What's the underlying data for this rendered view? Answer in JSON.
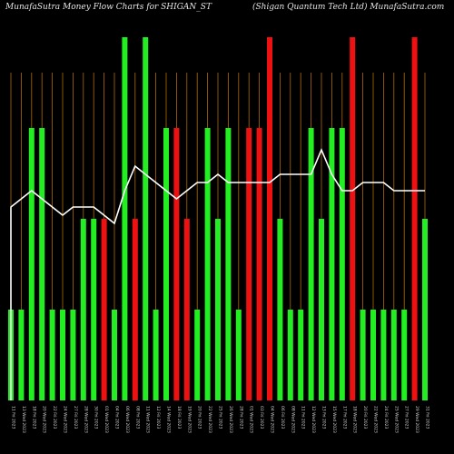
{
  "chart_data": {
    "type": "bar",
    "title_left": "MunafaSutra  Money Flow  Charts for SHIGAN_ST",
    "title_right": "(Shigan Quantum Tech Ltd) MunafaSutra.com",
    "categories": [
      "11 Fri 2023",
      "13 Wed 2023",
      "18 Fri 2023",
      "20 Wed 2023",
      "22 Fri 2023",
      "24 Wed 2023",
      "27 Fri 2023",
      "28 Wed 2023",
      "30 Fri 2023",
      "01 Wed 2023",
      "04 Fri 2023",
      "06 Wed 2023",
      "08 Fri 2023",
      "11 Wed 2023",
      "12 Fri 2023",
      "14 Wed 2023",
      "18 Fri 2023",
      "19 Wed 2023",
      "20 Fri 2023",
      "22 Wed 2023",
      "25 Fri 2023",
      "26 Wed 2023",
      "28 Fri 2023",
      "01 Wed 2023",
      "03 Fri 2023",
      "04 Wed 2023",
      "06 Fri 2023",
      "08 Wed 2023",
      "11 Fri 2023",
      "12 Wed 2023",
      "13 Fri 2023",
      "15 Wed 2023",
      "17 Fri 2023",
      "18 Wed 2023",
      "20 Fri 2023",
      "22 Wed 2023",
      "24 Fri 2023",
      "25 Wed 2023",
      "27 Fri 2023",
      "29 Wed 2023",
      "31 Fri 2023"
    ],
    "bar_values": [
      1,
      1,
      3,
      3,
      1,
      1,
      1,
      2,
      2,
      2,
      1,
      4,
      2,
      4,
      1,
      3,
      3,
      2,
      1,
      3,
      2,
      3,
      1,
      3,
      3,
      4,
      2,
      1,
      1,
      3,
      2,
      3,
      3,
      4,
      1,
      1,
      1,
      1,
      1,
      4,
      2
    ],
    "bar_colors": [
      "green",
      "green",
      "green",
      "green",
      "green",
      "green",
      "green",
      "green",
      "green",
      "red",
      "green",
      "green",
      "red",
      "green",
      "green",
      "green",
      "red",
      "red",
      "green",
      "green",
      "green",
      "green",
      "green",
      "red",
      "red",
      "red",
      "green",
      "green",
      "green",
      "green",
      "green",
      "green",
      "green",
      "red",
      "green",
      "green",
      "green",
      "green",
      "green",
      "red",
      "green"
    ],
    "line_values": [
      2.3,
      2.4,
      2.5,
      2.4,
      2.3,
      2.2,
      2.3,
      2.3,
      2.3,
      2.2,
      2.1,
      2.5,
      2.8,
      2.7,
      2.6,
      2.5,
      2.4,
      2.5,
      2.6,
      2.6,
      2.7,
      2.6,
      2.6,
      2.6,
      2.6,
      2.6,
      2.7,
      2.7,
      2.7,
      2.7,
      3.0,
      2.7,
      2.5,
      2.5,
      2.6,
      2.6,
      2.6,
      2.5,
      2.5,
      2.5,
      2.5
    ],
    "line_color": "#ffffff",
    "colors": {
      "green": "#22ee22",
      "red": "#ee1111",
      "grid": "#b06a00",
      "background": "#000000"
    }
  }
}
